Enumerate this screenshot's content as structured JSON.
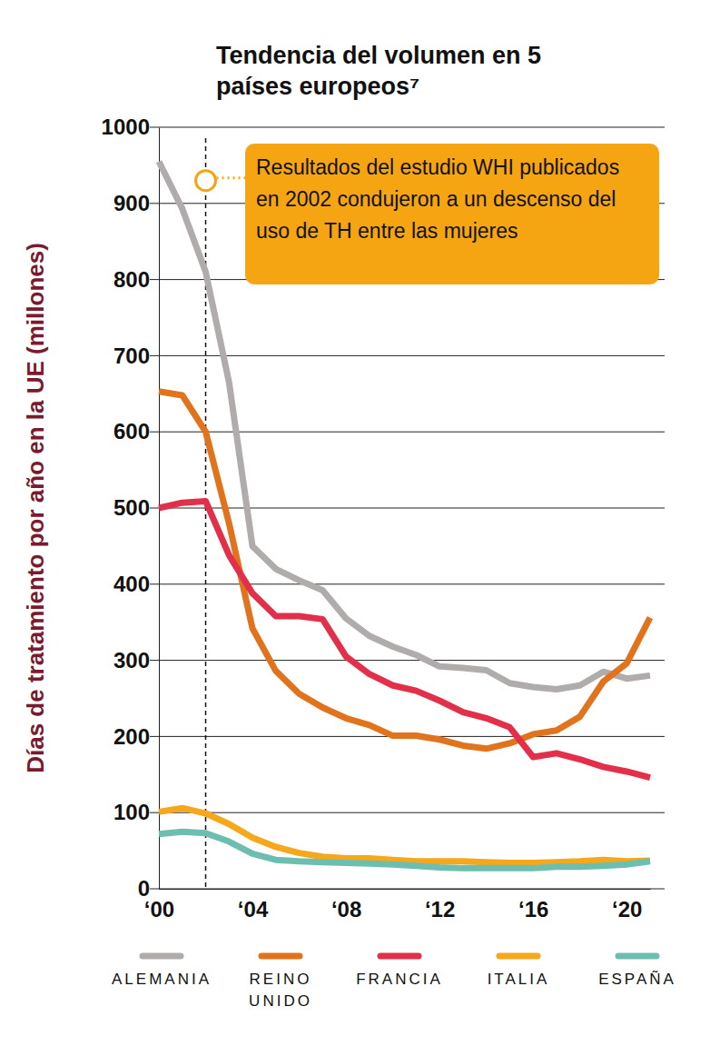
{
  "chart_data": {
    "type": "line",
    "title": "Tendencia del volumen en 5 países europeos⁷",
    "y_label": "Días de tratamiento por año en la UE (millones)",
    "annotations": [
      {
        "text": "Resultados del estudio WHI publicados en 2002 condujeron a un descenso del uso de TH entre las mujeres",
        "x": 2002,
        "y": 930
      }
    ],
    "x": [
      2000,
      2001,
      2002,
      2003,
      2004,
      2005,
      2006,
      2007,
      2008,
      2009,
      2010,
      2011,
      2012,
      2013,
      2014,
      2015,
      2016,
      2017,
      2018,
      2019,
      2020,
      2021
    ],
    "series": [
      {
        "name": "ALEMANIA",
        "color": "#b1acac",
        "values": [
          955,
          893,
          810,
          665,
          450,
          420,
          405,
          392,
          355,
          332,
          318,
          307,
          292,
          290,
          287,
          270,
          265,
          262,
          267,
          285,
          276,
          280
        ]
      },
      {
        "name": "REINO UNIDO",
        "color": "#e0731c",
        "values": [
          653,
          648,
          600,
          480,
          342,
          286,
          256,
          238,
          224,
          215,
          201,
          201,
          196,
          188,
          184,
          191,
          203,
          208,
          226,
          272,
          296,
          356
        ]
      },
      {
        "name": "FRANCIA",
        "color": "#e2304b",
        "values": [
          500,
          507,
          509,
          438,
          388,
          358,
          358,
          354,
          305,
          282,
          267,
          260,
          247,
          232,
          224,
          212,
          173,
          178,
          170,
          160,
          154,
          146
        ]
      },
      {
        "name": "ITALIA",
        "color": "#f5a81c",
        "values": [
          101,
          106,
          99,
          85,
          67,
          55,
          47,
          42,
          40,
          40,
          38,
          36,
          36,
          36,
          35,
          34,
          34,
          35,
          36,
          38,
          36,
          37
        ]
      },
      {
        "name": "ESPAÑA",
        "color": "#6cbfb0",
        "values": [
          72,
          75,
          73,
          62,
          46,
          38,
          36,
          35,
          34,
          33,
          32,
          30,
          28,
          27,
          27,
          27,
          27,
          29,
          29,
          30,
          32,
          36
        ]
      }
    ],
    "xlim": [
      2000,
      2021
    ],
    "xticks": [
      {
        "value": 2000,
        "label": "‘00"
      },
      {
        "value": 2004,
        "label": "‘04"
      },
      {
        "value": 2008,
        "label": "‘08"
      },
      {
        "value": 2012,
        "label": "‘12"
      },
      {
        "value": 2016,
        "label": "‘16"
      },
      {
        "value": 2020,
        "label": "‘20"
      }
    ],
    "ylim": [
      0,
      1000
    ],
    "yticks": [
      0,
      100,
      200,
      300,
      400,
      500,
      600,
      700,
      800,
      900,
      1000
    ],
    "grid": true,
    "legend": "bottom"
  }
}
